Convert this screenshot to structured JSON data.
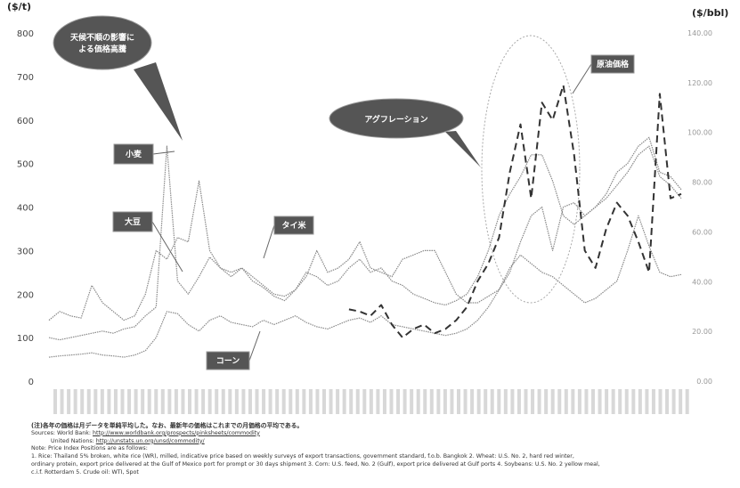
{
  "chart_data": {
    "type": "line",
    "title": "",
    "ylabel_left": "($/t)",
    "ylabel_right": "($/bbl)",
    "ylim_left": [
      0,
      800
    ],
    "yticks_left": [
      0,
      100,
      200,
      300,
      400,
      500,
      600,
      700,
      800
    ],
    "ylim_right": [
      0,
      140
    ],
    "yticks_right": [
      "0.00",
      "20.00",
      "40.00",
      "60.00",
      "80.00",
      "100.00",
      "120.00",
      "140.00"
    ],
    "x_count": 60,
    "grid": false,
    "series": [
      {
        "name": "コーン",
        "color": "#8a8a8a",
        "dash": "none",
        "values": [
          55,
          58,
          60,
          62,
          65,
          60,
          58,
          55,
          60,
          70,
          100,
          160,
          155,
          130,
          115,
          140,
          150,
          135,
          130,
          125,
          140,
          130,
          140,
          150,
          135,
          125,
          120,
          130,
          140,
          145,
          135,
          150,
          130,
          125,
          120,
          115,
          110,
          105,
          110,
          120,
          140,
          170,
          210,
          260,
          290,
          270,
          250,
          240,
          220,
          200,
          180,
          190,
          210,
          230,
          300,
          380,
          310,
          250,
          240,
          245
        ]
      },
      {
        "name": "小麦",
        "color": "#8a8a8a",
        "dash": "none",
        "values": [
          100,
          95,
          100,
          105,
          110,
          115,
          110,
          120,
          125,
          150,
          170,
          540,
          230,
          200,
          240,
          285,
          260,
          250,
          260,
          240,
          220,
          200,
          195,
          210,
          250,
          240,
          220,
          230,
          260,
          280,
          250,
          260,
          230,
          220,
          200,
          190,
          180,
          175,
          185,
          200,
          240,
          300,
          380,
          430,
          470,
          520,
          520,
          460,
          380,
          360,
          380,
          400,
          420,
          450,
          480,
          520,
          540,
          470,
          450,
          420
        ]
      },
      {
        "name": "タイ米",
        "color": "#888888",
        "dash": "none",
        "values": [
          140,
          160,
          150,
          145,
          220,
          180,
          160,
          140,
          150,
          200,
          300,
          280,
          330,
          320,
          460,
          300,
          260,
          240,
          260,
          230,
          215,
          195,
          185,
          210,
          240,
          300,
          250,
          260,
          280,
          320,
          260,
          250,
          240,
          280,
          290,
          300,
          300,
          250,
          200,
          180,
          180,
          195,
          210,
          250,
          320,
          380,
          400,
          300,
          400,
          410,
          380,
          400,
          430,
          480,
          500,
          540,
          560,
          480,
          470,
          440
        ]
      },
      {
        "name": "原油価格",
        "color": "#333333",
        "dash": "8 5",
        "values": [
          null,
          null,
          null,
          null,
          null,
          null,
          null,
          null,
          null,
          null,
          null,
          null,
          null,
          null,
          null,
          null,
          null,
          null,
          null,
          null,
          null,
          null,
          null,
          null,
          null,
          null,
          null,
          null,
          165,
          160,
          150,
          175,
          130,
          100,
          120,
          130,
          110,
          120,
          140,
          170,
          230,
          270,
          330,
          480,
          590,
          420,
          640,
          600,
          680,
          520,
          300,
          260,
          350,
          410,
          380,
          320,
          250,
          660,
          420,
          430
        ]
      }
    ],
    "annotations": [
      {
        "text": "天候不順の影響による価格高騰",
        "type": "speech-bubble"
      },
      {
        "text": "アグフレーション",
        "type": "speech-bubble"
      },
      {
        "text": "小麦",
        "type": "label"
      },
      {
        "text": "大豆",
        "type": "label"
      },
      {
        "text": "タイ米",
        "type": "label"
      },
      {
        "text": "コーン",
        "type": "label"
      },
      {
        "text": "原油価格",
        "type": "label"
      }
    ]
  },
  "notes": {
    "line1": "(注)各年の価格は月データを単純平均した。なお、最新年の価格はこれまでの月価格の平均である。",
    "line2_prefix": "Sources: World Bank: ",
    "line2_url": "http://www.worldbank.org/prospects/pinksheets/commodity",
    "line3_prefix": "United Nations: ",
    "line3_url": "http://unstats.un.org/unsd/commodity/",
    "line4": "Note: Price Index Positions are as follows:",
    "line5": "1. Rice: Thailand 5% broken, white rice (WR), milled, indicative price based on weekly surveys of export transactions, government standard, f.o.b. Bangkok   2. Wheat: U.S. No. 2, hard red winter,",
    "line6": "ordinary protein, export price delivered at the Gulf of Mexico port for prompt or 30 days shipment   3. Corn: U.S. feed, No. 2 (Gulf), export price delivered at Gulf ports   4. Soybeans: U.S. No. 2 yellow meal,",
    "line7": "c.i.f. Rotterdam   5. Crude oil: WTI, Spot"
  }
}
